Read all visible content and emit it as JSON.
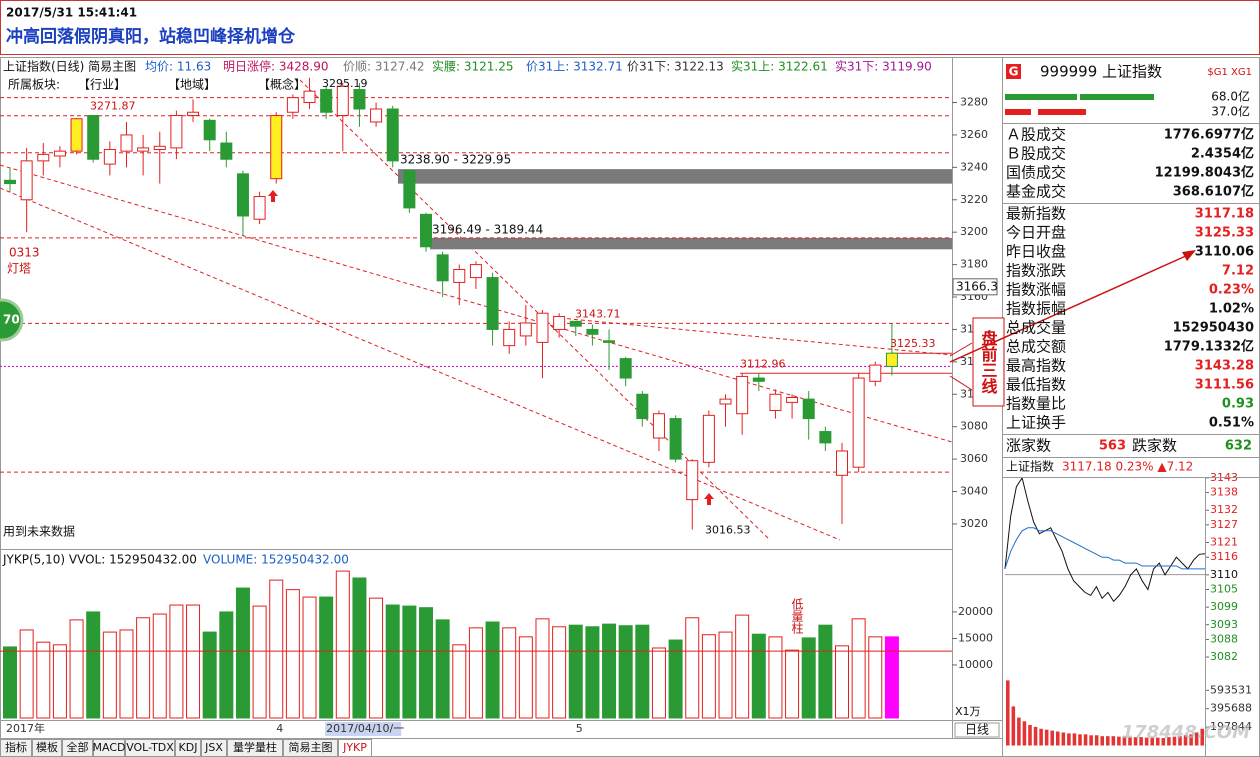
{
  "header": {
    "datetime": "2017/5/31 15:41:41",
    "title": "冲高回落假阴真阳，站稳凹峰择机增仓"
  },
  "info_bar": [
    {
      "text": "上证指数(日线) 简易主图",
      "color": "#111111"
    },
    {
      "text": "均价: 11.63",
      "color": "#1a5fc8"
    },
    {
      "text": "明日涨停: 3428.90",
      "color": "#c0145a"
    },
    {
      "text": "价顺: 3127.42",
      "color": "#777777"
    },
    {
      "text": "实腰: 3121.25",
      "color": "#1f8f1f"
    },
    {
      "text": "价31上: 3132.71",
      "color": "#1a5fc8"
    },
    {
      "text": "价31下: 3122.13",
      "color": "#333333"
    },
    {
      "text": "实31上: 3122.61",
      "color": "#1f8f1f"
    },
    {
      "text": "实31下: 3119.90",
      "color": "#a0189a"
    }
  ],
  "sector_row": [
    "所属板块:",
    "【行业】",
    "【地域】",
    "【概念】"
  ],
  "side_notes": {
    "signal": "0313",
    "signal_name": "灯塔",
    "badge": "70",
    "callout": "盘前三线"
  },
  "chart_data": [
    {
      "type": "candlestick",
      "categories": [
        "2017年",
        null,
        null,
        null,
        null,
        null,
        null,
        null,
        null,
        null,
        null,
        null,
        null,
        null,
        null,
        null,
        "4",
        null,
        null,
        "2017/04/10/一",
        null,
        null,
        null,
        null,
        null,
        null,
        null,
        null,
        null,
        null,
        null,
        null,
        null,
        null,
        "5",
        null,
        null,
        null,
        null,
        null,
        null,
        null,
        null,
        null,
        null,
        null,
        null,
        null,
        null,
        null,
        null,
        null,
        null,
        null
      ],
      "open": [
        3232,
        3220,
        3244,
        3247,
        3250,
        3272,
        3242,
        3250,
        3250,
        3251,
        3252,
        3272,
        3269,
        3255,
        3236,
        3208,
        3233,
        3274,
        3280,
        3288,
        3272,
        3288,
        3268,
        3276,
        3238,
        3211,
        3186,
        3169,
        3172,
        3172,
        3130,
        3136,
        3132,
        3140,
        3145,
        3140,
        3133,
        3122,
        3100,
        3073,
        3085,
        3035,
        3058,
        3094,
        3088,
        3110,
        3090,
        3095,
        3097,
        3077,
        3050,
        3055,
        3108,
        3125.33
      ],
      "high": [
        3240,
        3252,
        3255,
        3253,
        3270.5,
        3271.87,
        3256,
        3268,
        3260,
        3262,
        3275,
        3282,
        3270,
        3262,
        3238,
        3225,
        3274,
        3285,
        3295.19,
        3290,
        3292,
        3292,
        3280,
        3278,
        3238,
        3212,
        3188,
        3180,
        3182,
        3175,
        3145,
        3155,
        3152,
        3150,
        3143.71,
        3143,
        3140,
        3123,
        3102,
        3090,
        3087,
        3060,
        3090,
        3100,
        3112.96,
        3113,
        3103,
        3100,
        3102,
        3080,
        3070,
        3113,
        3120,
        3143.28
      ],
      "low": [
        3225,
        3200,
        3235,
        3240,
        3248,
        3243,
        3235,
        3240,
        3235,
        3230,
        3245,
        3268,
        3250,
        3240,
        3198,
        3205,
        3230,
        3270,
        3276,
        3270,
        3250,
        3265,
        3265,
        3240,
        3212,
        3188,
        3160,
        3155,
        3165,
        3130,
        3125,
        3130,
        3110,
        3135,
        3136,
        3130,
        3115,
        3105,
        3080,
        3065,
        3058,
        3016.53,
        3055,
        3080,
        3075,
        3102,
        3085,
        3085,
        3072,
        3065,
        3020,
        3052,
        3105,
        3111.56
      ],
      "close": [
        3230,
        3244,
        3248,
        3250,
        3270,
        3245,
        3251,
        3260,
        3252,
        3253,
        3272,
        3274,
        3257,
        3245,
        3210,
        3222,
        3272,
        3283,
        3287,
        3274,
        3290,
        3276,
        3276,
        3244,
        3215,
        3191,
        3170,
        3177,
        3180,
        3140,
        3140,
        3144,
        3150,
        3148,
        3142,
        3137,
        3132,
        3110,
        3085,
        3088,
        3060,
        3059,
        3087,
        3097,
        3111,
        3108,
        3100,
        3098,
        3085,
        3070,
        3065,
        3110,
        3118,
        3117.18
      ],
      "colors": {
        "up": "#e41f1f",
        "down": "#2a9a34",
        "highlight": "#ffee22"
      },
      "highlight": [
        4,
        16,
        53
      ],
      "ylim": [
        3007,
        3305
      ],
      "yticks": [
        3020,
        3040,
        3060,
        3080,
        3100,
        3120,
        3140,
        3160,
        3180,
        3200,
        3220,
        3240,
        3260,
        3280
      ],
      "hlines": [
        3283,
        3271.87,
        3249,
        3196.49,
        3143.71,
        3052
      ],
      "zones": [
        {
          "label": "3238.90 - 3229.95",
          "range": [
            3229.95,
            3238.9
          ]
        },
        {
          "label": "3196.49 - 3189.44",
          "range": [
            3189.44,
            3196.49
          ]
        }
      ],
      "annotations": [
        3271.87,
        3295.19,
        3143.71,
        3112.96,
        3125.33,
        3016.53
      ],
      "cursor_value": 3166.3,
      "note": "用到未来数据"
    },
    {
      "type": "bar",
      "title": "JYKP(5,10) VVOL: 152950432.00",
      "subtitle": "VOLUME: 152950432.00",
      "unit_label": "X1万",
      "annotation": "低量柱",
      "values": [
        13400,
        16600,
        14300,
        13800,
        18500,
        20000,
        16200,
        16600,
        18900,
        19600,
        21300,
        21300,
        16200,
        20000,
        24500,
        21100,
        26000,
        24200,
        22800,
        22800,
        27700,
        26400,
        22600,
        21300,
        21100,
        20800,
        18500,
        13800,
        17000,
        18100,
        17000,
        15300,
        18700,
        17200,
        17500,
        17200,
        17700,
        17400,
        17500,
        13200,
        14700,
        18900,
        15700,
        16200,
        19400,
        15800,
        15300,
        12800,
        15100,
        17500,
        13600,
        18700,
        15300,
        15295
      ],
      "last_color": "#ff00ff",
      "ylim": [
        0,
        31300
      ],
      "yticks": [
        10000,
        15000,
        20000
      ],
      "hline": 12600
    },
    {
      "type": "line",
      "title": "上证指数",
      "subtitle": "3117.18 0.23% ▲7.12",
      "series": [
        {
          "color": "#111111",
          "values": [
            3112,
            3130,
            3140,
            3143,
            3135,
            3128,
            3124,
            3125,
            3126,
            3122,
            3118,
            3112,
            3108,
            3106,
            3104,
            3103,
            3106,
            3102,
            3104,
            3101,
            3103,
            3106,
            3110,
            3112,
            3108,
            3105,
            3112,
            3114,
            3110,
            3113,
            3116,
            3114,
            3112,
            3115,
            3117,
            3117.18
          ]
        },
        {
          "color": "#1e6fd0",
          "values": [
            3112,
            3118,
            3122,
            3125,
            3126,
            3126,
            3125,
            3125,
            3125,
            3124,
            3123,
            3122,
            3121,
            3120,
            3119,
            3118,
            3117,
            3116,
            3116,
            3115,
            3115,
            3114,
            3114,
            3114,
            3113,
            3113,
            3113,
            3113,
            3113,
            3113,
            3113,
            3112,
            3112,
            3112,
            3112,
            3112
          ]
        }
      ],
      "baseline": 3110.06,
      "ylim": [
        3079.3,
        3145.0
      ],
      "yticks": [
        3143,
        3138,
        3132,
        3127,
        3121,
        3116,
        3110,
        3105,
        3099,
        3093,
        3088,
        3082
      ]
    },
    {
      "type": "bar",
      "color": "#e33333",
      "values": [
        700000,
        420000,
        300000,
        260000,
        220000,
        200000,
        180000,
        170000,
        160000,
        150000,
        140000,
        130000,
        130000,
        120000,
        120000,
        110000,
        110000,
        100000,
        100000,
        100000,
        95000,
        95000,
        90000,
        90000,
        90000,
        85000,
        85000,
        85000,
        80000,
        90000,
        95000,
        100000,
        110000,
        120000,
        140000,
        180000
      ],
      "ylim": [
        0,
        790000
      ],
      "yticks": [
        593531,
        395688,
        197844
      ]
    }
  ],
  "quote_panel": {
    "badge": "G",
    "code_name": "999999 上证指数",
    "tags": "$G1 XG1",
    "bar_labels": [
      "68.0亿",
      "37.0亿"
    ],
    "rows": [
      {
        "label": "Ａ股成交",
        "value": "1776.6977亿",
        "color": "#111111"
      },
      {
        "label": "Ｂ股成交",
        "value": "2.4354亿",
        "color": "#111111"
      },
      {
        "label": "国债成交",
        "value": "12199.8043亿",
        "color": "#111111"
      },
      {
        "label": "基金成交",
        "value": "368.6107亿",
        "color": "#111111"
      },
      {
        "label": "最新指数",
        "value": "3117.18",
        "color": "#e41f1f"
      },
      {
        "label": "今日开盘",
        "value": "3125.33",
        "color": "#e41f1f"
      },
      {
        "label": "昨日收盘",
        "value": "3110.06",
        "color": "#111111"
      },
      {
        "label": "指数涨跌",
        "value": "7.12",
        "color": "#e41f1f"
      },
      {
        "label": "指数涨幅",
        "value": "0.23%",
        "color": "#e41f1f"
      },
      {
        "label": "指数振幅",
        "value": "1.02%",
        "color": "#111111"
      },
      {
        "label": "总成交量",
        "value": "152950430",
        "color": "#111111"
      },
      {
        "label": "总成交额",
        "value": "1779.1332亿",
        "color": "#111111"
      },
      {
        "label": "最高指数",
        "value": "3143.28",
        "color": "#e41f1f"
      },
      {
        "label": "最低指数",
        "value": "3111.56",
        "color": "#e41f1f"
      },
      {
        "label": "指数量比",
        "value": "0.93",
        "color": "#1f8f1f"
      },
      {
        "label": "上证换手",
        "value": "0.51%",
        "color": "#111111"
      }
    ],
    "breadth": {
      "up_label": "涨家数",
      "up": 563,
      "down_label": "跌家数",
      "down": 632
    }
  },
  "toolbar": {
    "tabs": [
      "指标",
      "模板",
      "全部",
      "MACD",
      "VOL-TDX",
      "KDJ",
      "JSX",
      "量学量柱",
      "简易主图",
      "JYKP"
    ],
    "period": "日线"
  },
  "watermark": "178448.COM"
}
